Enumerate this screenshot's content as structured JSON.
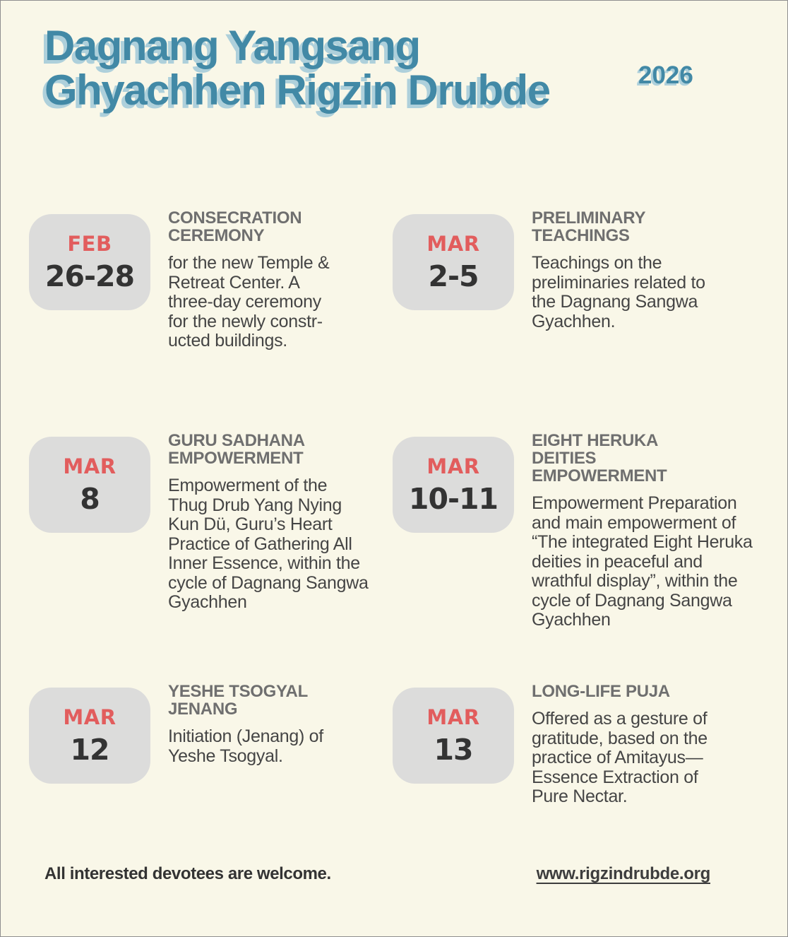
{
  "header": {
    "title": "Dagnang Yangsang\nGhyachhen Rigzin Drubde",
    "year": "2026"
  },
  "events": [
    {
      "month": "FEB",
      "dates": "26-28",
      "title": "CONSECRATION\nCEREMONY",
      "description": "for the new Temple &\nRetreat Center. A\nthree-day ceremony\nfor the newly constr-\nucted buildings."
    },
    {
      "month": "MAR",
      "dates": "2-5",
      "title": "PRELIMINARY\nTEACHINGS",
      "description": "Teachings on the\npreliminaries related to\nthe Dagnang Sangwa\nGyachhen."
    },
    {
      "month": "MAR",
      "dates": "8",
      "title": "GURU SADHANA\nEMPOWERMENT",
      "description": "Empowerment of the\nThug Drub Yang Nying\nKun Dü, Guru’s Heart\nPractice of Gathering All\nInner Essence, within the\ncycle of Dagnang Sangwa\nGyachhen"
    },
    {
      "month": "MAR",
      "dates": "10-11",
      "title": "EIGHT HERUKA\nDEITIES\nEMPOWERMENT",
      "description": "Empowerment Preparation\nand main empowerment of\n“The integrated Eight Heruka\ndeities in peaceful and\nwrathful display”, within the\ncycle of Dagnang Sangwa\nGyachhen"
    },
    {
      "month": "MAR",
      "dates": "12",
      "title": "YESHE TSOGYAL\nJENANG",
      "description": "Initiation (Jenang) of\nYeshe Tsogyal."
    },
    {
      "month": "MAR",
      "dates": "13",
      "title": "LONG-LIFE PUJA",
      "description": "Offered as a gesture of\ngratitude, based on the\npractice of Amitayus—\nEssence Extraction of\nPure Nectar."
    }
  ],
  "footer": {
    "note": "All interested devotees are welcome.",
    "website": "www.rigzindrubde.org"
  },
  "colors": {
    "background": "#F9F7E8",
    "title_teal": "#4289A6",
    "title_shadow": "#AED0DB",
    "badge_gray": "#DCDCDB",
    "month_red": "#E25D5D",
    "date_dark": "#333333",
    "heading_gray": "#6F6F6F",
    "body_text": "#454545"
  }
}
